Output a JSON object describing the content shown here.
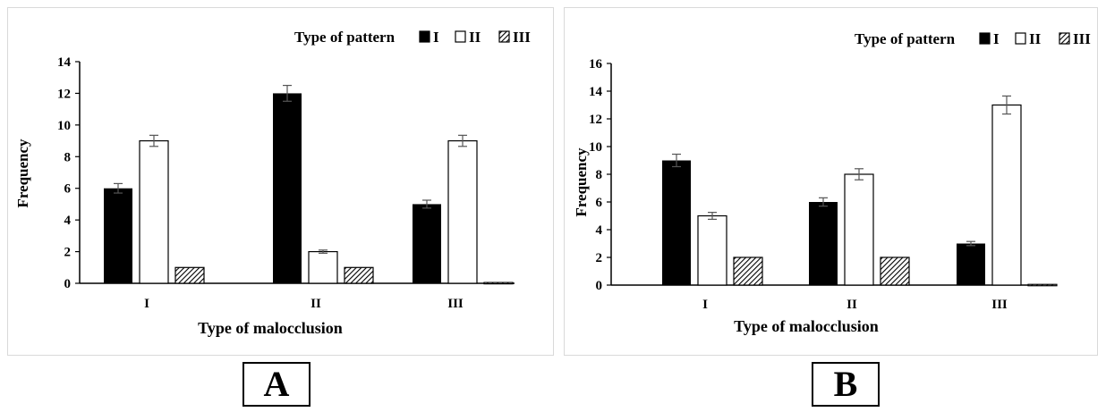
{
  "chart_data": [
    {
      "type": "bar",
      "panel_label": "A",
      "legend_title": "Type of pattern",
      "categories": [
        "I",
        "II",
        "III"
      ],
      "series": [
        {
          "name": "I",
          "values": [
            6,
            12,
            5
          ],
          "errors": [
            0.3,
            0.5,
            0.25
          ]
        },
        {
          "name": "II",
          "values": [
            9,
            2,
            9
          ],
          "errors": [
            0.35,
            0.1,
            0.35
          ]
        },
        {
          "name": "III",
          "values": [
            1,
            1,
            0.05
          ],
          "errors": [
            0,
            0,
            0
          ]
        }
      ],
      "xlabel": "Type of malocclusion",
      "ylabel": "Frequency",
      "ylim": [
        0,
        14
      ],
      "yticks": [
        0,
        2,
        4,
        6,
        8,
        10,
        12,
        14
      ],
      "legend_position": "top-right",
      "grid": false
    },
    {
      "type": "bar",
      "panel_label": "B",
      "legend_title": "Type of pattern",
      "categories": [
        "I",
        "II",
        "III"
      ],
      "series": [
        {
          "name": "I",
          "values": [
            9,
            6,
            3
          ],
          "errors": [
            0.45,
            0.3,
            0.15
          ]
        },
        {
          "name": "II",
          "values": [
            5,
            8,
            13
          ],
          "errors": [
            0.25,
            0.4,
            0.65
          ]
        },
        {
          "name": "III",
          "values": [
            2,
            2,
            0.05
          ],
          "errors": [
            0,
            0,
            0
          ]
        }
      ],
      "xlabel": "Type of malocclusion",
      "ylabel": "Frequency",
      "ylim": [
        0,
        16
      ],
      "yticks": [
        0,
        2,
        4,
        6,
        8,
        10,
        12,
        14,
        16
      ],
      "legend_position": "top-right",
      "grid": false
    }
  ],
  "colors": {
    "series_I": "#000000",
    "series_II": "#ffffff",
    "series_III": "hatched",
    "axis": "#000000",
    "error_bar": "#555555",
    "panel_border": "#d9d9d9"
  }
}
